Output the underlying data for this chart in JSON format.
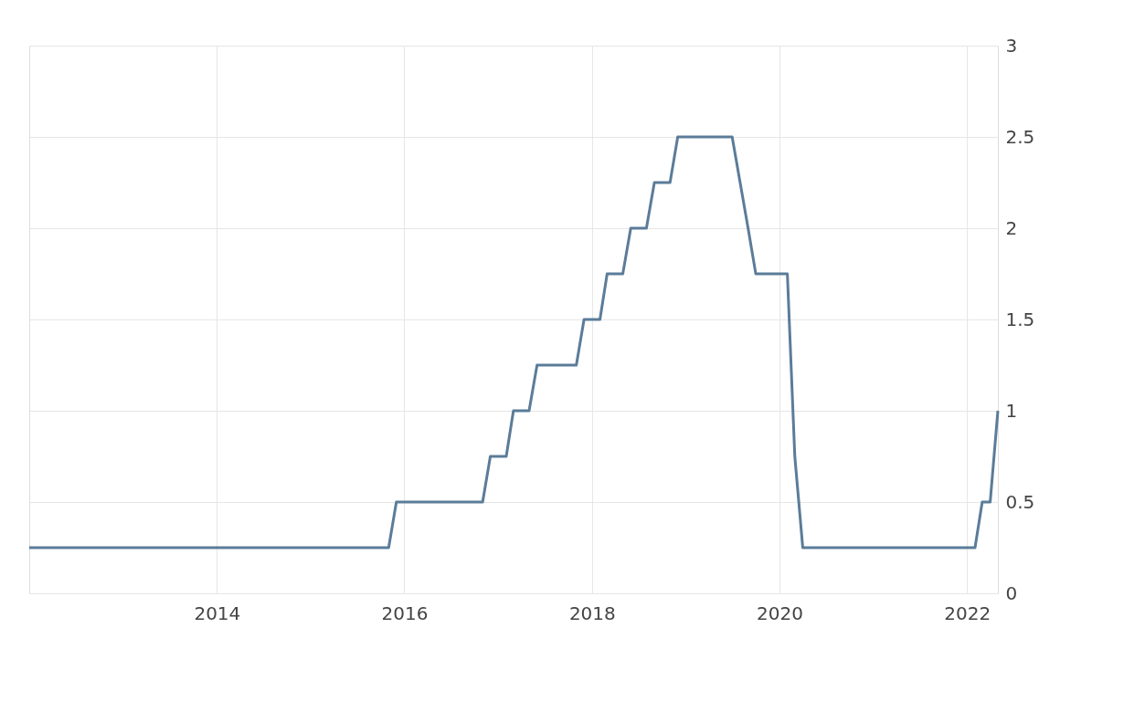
{
  "chart_data": {
    "type": "line",
    "x": [
      "2012-01",
      "2015-11",
      "2015-12",
      "2016-11",
      "2016-12",
      "2017-02",
      "2017-03",
      "2017-05",
      "2017-06",
      "2017-11",
      "2017-12",
      "2018-02",
      "2018-03",
      "2018-05",
      "2018-06",
      "2018-08",
      "2018-09",
      "2018-11",
      "2018-12",
      "2019-07",
      "2019-08",
      "2019-09",
      "2019-10",
      "2020-02",
      "2020-03",
      "2020-04",
      "2022-02",
      "2022-03",
      "2022-04",
      "2022-05"
    ],
    "series": [
      {
        "color": "#5b7c99",
        "values": [
          0.25,
          0.25,
          0.5,
          0.5,
          0.75,
          0.75,
          1.0,
          1.0,
          1.25,
          1.25,
          1.5,
          1.5,
          1.75,
          1.75,
          2.0,
          2.0,
          2.25,
          2.25,
          2.5,
          2.5,
          2.25,
          2.0,
          1.75,
          1.75,
          0.75,
          0.25,
          0.25,
          0.5,
          0.5,
          1.0
        ]
      }
    ],
    "xlim": [
      "2012-01",
      "2022-05"
    ],
    "xticks": [
      "2014",
      "2016",
      "2018",
      "2020",
      "2022"
    ],
    "ylim": [
      0,
      3
    ],
    "yticks": [
      0,
      0.5,
      1,
      1.5,
      2,
      2.5,
      3
    ],
    "grid": true,
    "marker": "none",
    "line_style": "solid"
  }
}
